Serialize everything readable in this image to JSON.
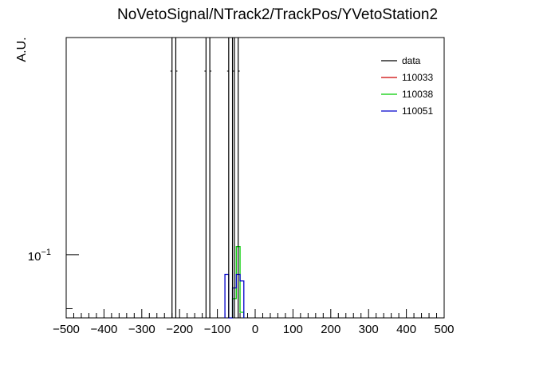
{
  "chart_data": {
    "type": "histogram",
    "title": "NoVetoSignal/NTrack2/TrackPos/YVetoStation2",
    "xlabel": "",
    "ylabel": "A.U.",
    "xlim": [
      -500,
      500
    ],
    "yscale": "log",
    "ylim": [
      0.055,
      0.78
    ],
    "x_ticks": [
      -500,
      -400,
      -300,
      -200,
      -100,
      0,
      100,
      200,
      300,
      400,
      500
    ],
    "x_tick_labels": [
      "−500",
      "−400",
      "−300",
      "−200",
      "−100",
      "0",
      "100",
      "200",
      "300",
      "400",
      "500"
    ],
    "y_tick_label_base": "10",
    "y_tick_label_exp": "−1",
    "y_tick_value": 0.1,
    "legend_position": "top-right",
    "bin_width": 10,
    "legend": [
      {
        "label": "data",
        "color": "#000000"
      },
      {
        "label": "110033",
        "color": "#cc0000"
      },
      {
        "label": "110038",
        "color": "#00cc00"
      },
      {
        "label": "110051",
        "color": "#0000cc"
      }
    ],
    "data": {
      "name": "data",
      "color": "#000000",
      "note": "bins with content above the visible range",
      "bins": [
        {
          "x0": -220,
          "x1": -210,
          "y": 1.0,
          "err": 0.3
        },
        {
          "x0": -130,
          "x1": -120,
          "y": 1.0,
          "err": 0.3
        },
        {
          "x0": -70,
          "x1": -60,
          "y": 1.0,
          "err": 0.3
        },
        {
          "x0": -55,
          "x1": -45,
          "y": 1.0,
          "err": 0.3
        }
      ]
    },
    "series": [
      {
        "name": "110038",
        "color": "#00cc00",
        "bins": [
          {
            "x0": -60,
            "x1": -50,
            "y": 0.066
          },
          {
            "x0": -50,
            "x1": -40,
            "y": 0.108
          },
          {
            "x0": -40,
            "x1": -30,
            "y": 0.058
          }
        ]
      },
      {
        "name": "110051",
        "color": "#0000cc",
        "bins": [
          {
            "x0": -80,
            "x1": -70,
            "y": 0.083
          },
          {
            "x0": -70,
            "x1": -60,
            "y": 0.055
          },
          {
            "x0": -60,
            "x1": -50,
            "y": 0.073
          },
          {
            "x0": -50,
            "x1": -40,
            "y": 0.083
          },
          {
            "x0": -40,
            "x1": -30,
            "y": 0.078
          }
        ]
      }
    ]
  }
}
